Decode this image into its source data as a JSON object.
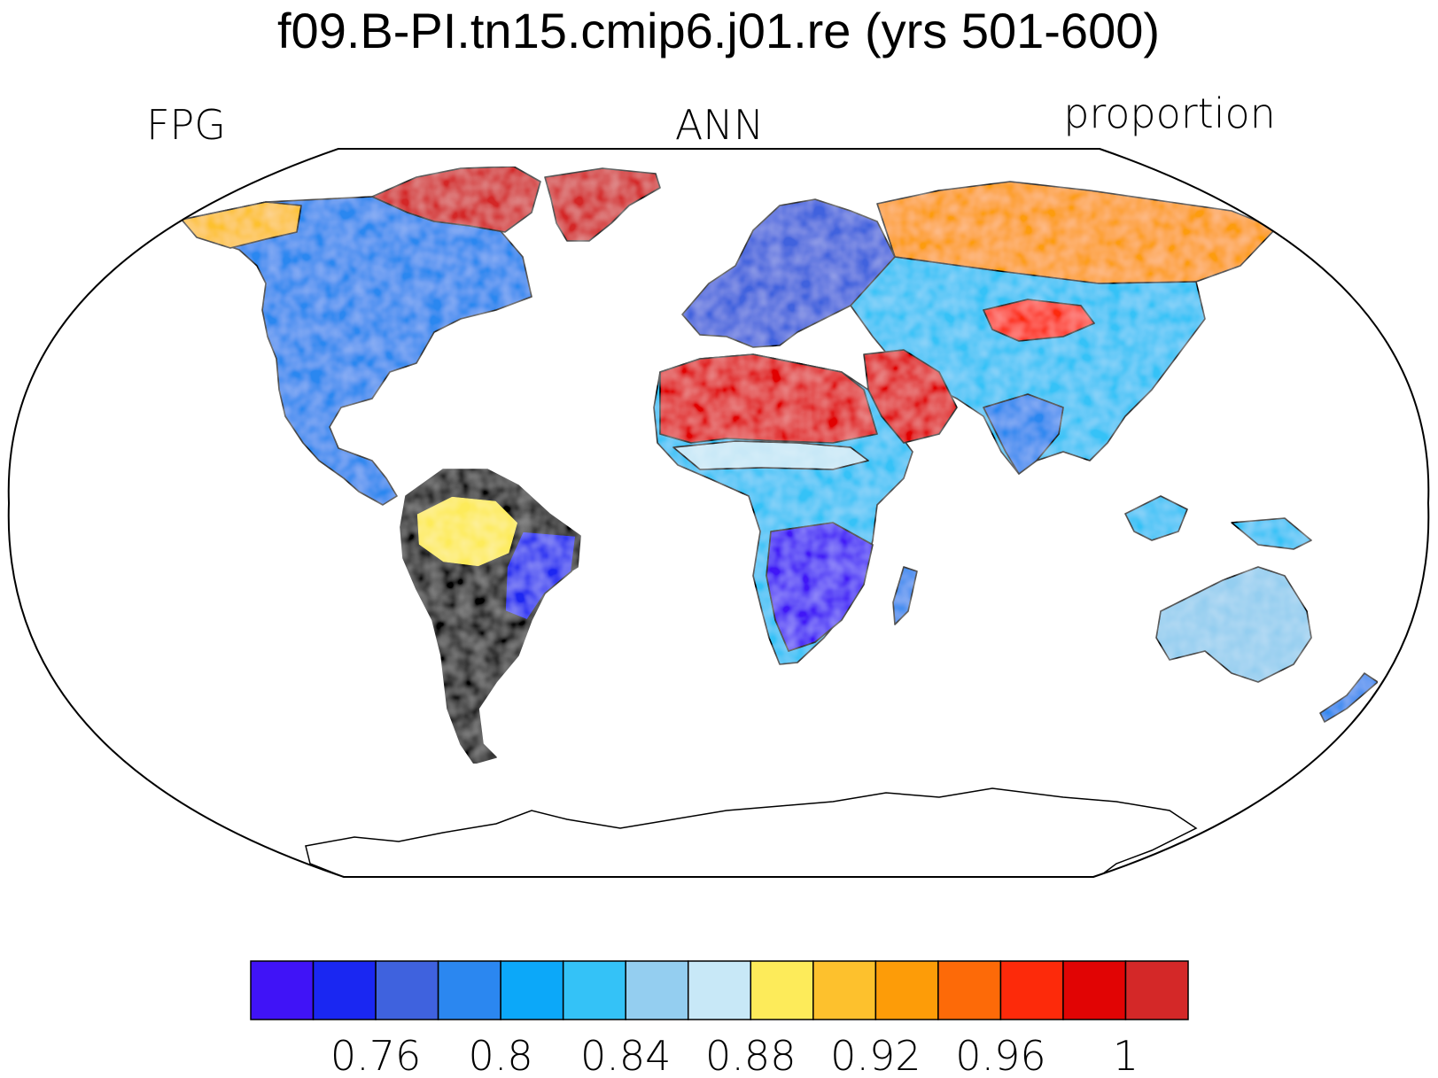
{
  "title": "f09.B-PI.tn15.cmip6.j01.re (yrs 501-600)",
  "left_label": "FPG",
  "center_label": "ANN",
  "right_label": "proportion",
  "colorbar": {
    "colors": [
      "#4013f7",
      "#1a27f2",
      "#3f62de",
      "#2b87f0",
      "#0ca8f9",
      "#34c2f7",
      "#94cef0",
      "#c8e8f7",
      "#fdeb5a",
      "#fdc12d",
      "#fd9c08",
      "#fd6a08",
      "#fd2a0a",
      "#e10404",
      "#d42828"
    ],
    "tick_labels": [
      "0.76",
      "0.8",
      "0.84",
      "0.88",
      "0.92",
      "0.96",
      "1"
    ]
  },
  "map": {
    "variable": "FPG",
    "units": "proportion",
    "season": "ANN",
    "projection": "Robinson",
    "regions": [
      {
        "name": "Sahara",
        "color": "#e10404"
      },
      {
        "name": "Arabia",
        "color": "#e10404"
      },
      {
        "name": "Sahel",
        "color": "#c8e8f7"
      },
      {
        "name": "Central Africa",
        "color": "#34c2f7"
      },
      {
        "name": "Southern Africa",
        "color": "#4013f7"
      },
      {
        "name": "Europe",
        "color": "#3f62de"
      },
      {
        "name": "Siberia",
        "color": "#fd9c08"
      },
      {
        "name": "Central Asia",
        "color": "#fd2a0a"
      },
      {
        "name": "India",
        "color": "#2b87f0"
      },
      {
        "name": "China",
        "color": "#34c2f7"
      },
      {
        "name": "North America",
        "color": "#2b87f0"
      },
      {
        "name": "Canadian Arctic",
        "color": "#d42828"
      },
      {
        "name": "Alaska",
        "color": "#fdc12d"
      },
      {
        "name": "Greenland coast",
        "color": "#d42828"
      },
      {
        "name": "Amazon",
        "color": "#fdeb5a"
      },
      {
        "name": "Eastern Brazil",
        "color": "#1a27f2"
      },
      {
        "name": "Southern South America",
        "color": "#3f62de"
      },
      {
        "name": "Australia",
        "color": "#94cef0"
      },
      {
        "name": "Indonesia",
        "color": "#34c2f7"
      },
      {
        "name": "New Zealand",
        "color": "#2b87f0"
      },
      {
        "name": "Madagascar",
        "color": "#2b87f0"
      }
    ]
  }
}
